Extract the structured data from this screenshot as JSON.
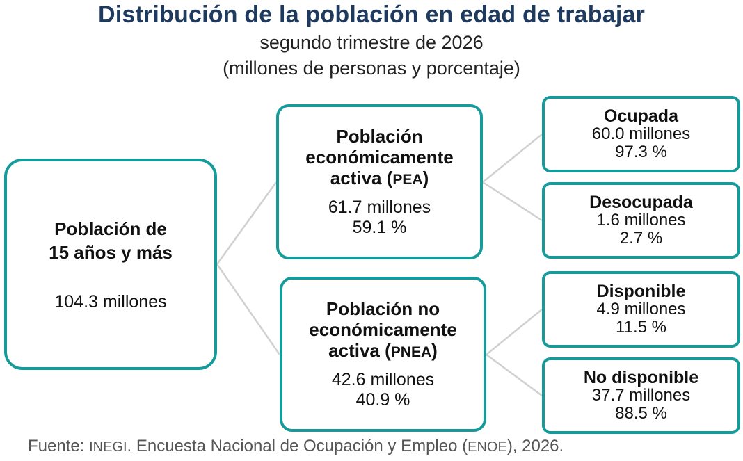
{
  "title": "Distribución de la población en edad de trabajar",
  "subtitle_line1": "segundo trimestre de 2026",
  "subtitle_line2": "(millones de personas y porcentaje)",
  "colors": {
    "title": "#1f3a5f",
    "box_border": "#169a9a",
    "connector": "#d0d0d0"
  },
  "nodes": {
    "root": {
      "name_line1": "Población de",
      "name_line2": "15 años y más",
      "value": "104.3 millones"
    },
    "pea": {
      "name_line1": "Población",
      "name_line2": "económicamente",
      "name_line3": "activa (",
      "abbr": "PEA",
      "name_close": ")",
      "value": "61.7 millones",
      "percent": "59.1 %"
    },
    "pnea": {
      "name_line1": "Población no",
      "name_line2": "económicamente",
      "name_line3": "activa (",
      "abbr": "PNEA",
      "name_close": ")",
      "value": "42.6 millones",
      "percent": "40.9 %"
    },
    "ocupada": {
      "name": "Ocupada",
      "value": "60.0 millones",
      "percent": "97.3 %"
    },
    "desocupada": {
      "name": "Desocupada",
      "value": "1.6 millones",
      "percent": "2.7 %"
    },
    "disponible": {
      "name": "Disponible",
      "value": "4.9 millones",
      "percent": "11.5 %"
    },
    "no_disponible": {
      "name": "No disponible",
      "value": "37.7 millones",
      "percent": "88.5 %"
    }
  },
  "source": {
    "prefix": "Fuente: ",
    "org": "INEGI",
    "middle": ". Encuesta Nacional de Ocupación y Empleo (",
    "survey": "ENOE",
    "suffix": "), 2026."
  }
}
